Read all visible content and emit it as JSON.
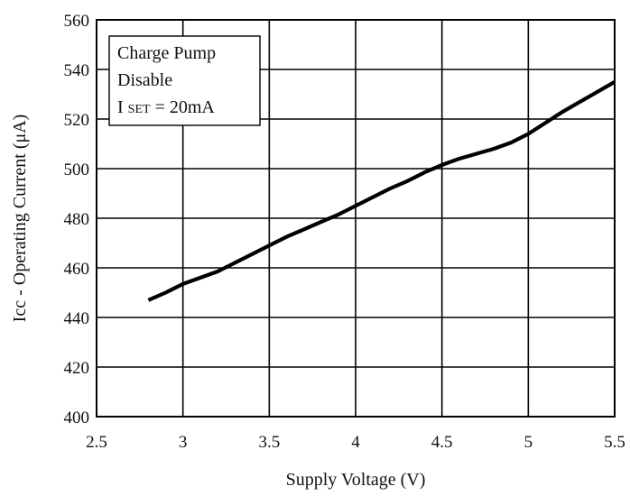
{
  "chart_data": {
    "type": "line",
    "xlabel": "Supply Voltage  (V)",
    "ylabel": "Icc - Operating Current  (μA)",
    "xlim": [
      2.5,
      5.5
    ],
    "ylim": [
      400,
      560
    ],
    "xticks": [
      "2.5",
      "3",
      "3.5",
      "4",
      "4.5",
      "5",
      "5.5"
    ],
    "xtick_values": [
      2.5,
      3,
      3.5,
      4,
      4.5,
      5,
      5.5
    ],
    "yticks": [
      "400",
      "420",
      "440",
      "460",
      "480",
      "500",
      "520",
      "540",
      "560"
    ],
    "ytick_values": [
      400,
      420,
      440,
      460,
      480,
      500,
      520,
      540,
      560
    ],
    "grid": true,
    "annotation": {
      "line1": "Charge Pump",
      "line2": "Disable",
      "line3_prefix": "I ",
      "line3_sub": "SET",
      "line3_suffix": " = 20mA",
      "placement": "top-left"
    },
    "series": [
      {
        "x": [
          2.8,
          2.9,
          3.0,
          3.1,
          3.2,
          3.3,
          3.4,
          3.5,
          3.6,
          3.7,
          3.8,
          3.9,
          4.0,
          4.1,
          4.2,
          4.3,
          4.4,
          4.5,
          4.6,
          4.7,
          4.8,
          4.9,
          5.0,
          5.1,
          5.2,
          5.3,
          5.4,
          5.5
        ],
        "y": [
          447,
          450,
          453.5,
          456,
          458.5,
          462,
          465.5,
          469,
          472.5,
          475.5,
          478.5,
          481.5,
          485,
          488.5,
          492,
          495,
          498.5,
          501.5,
          504,
          506,
          508,
          510.5,
          514,
          518.5,
          523,
          527,
          531,
          535
        ]
      }
    ],
    "colors": {
      "line": "#000000",
      "grid": "#000000",
      "text": "#111111"
    }
  }
}
